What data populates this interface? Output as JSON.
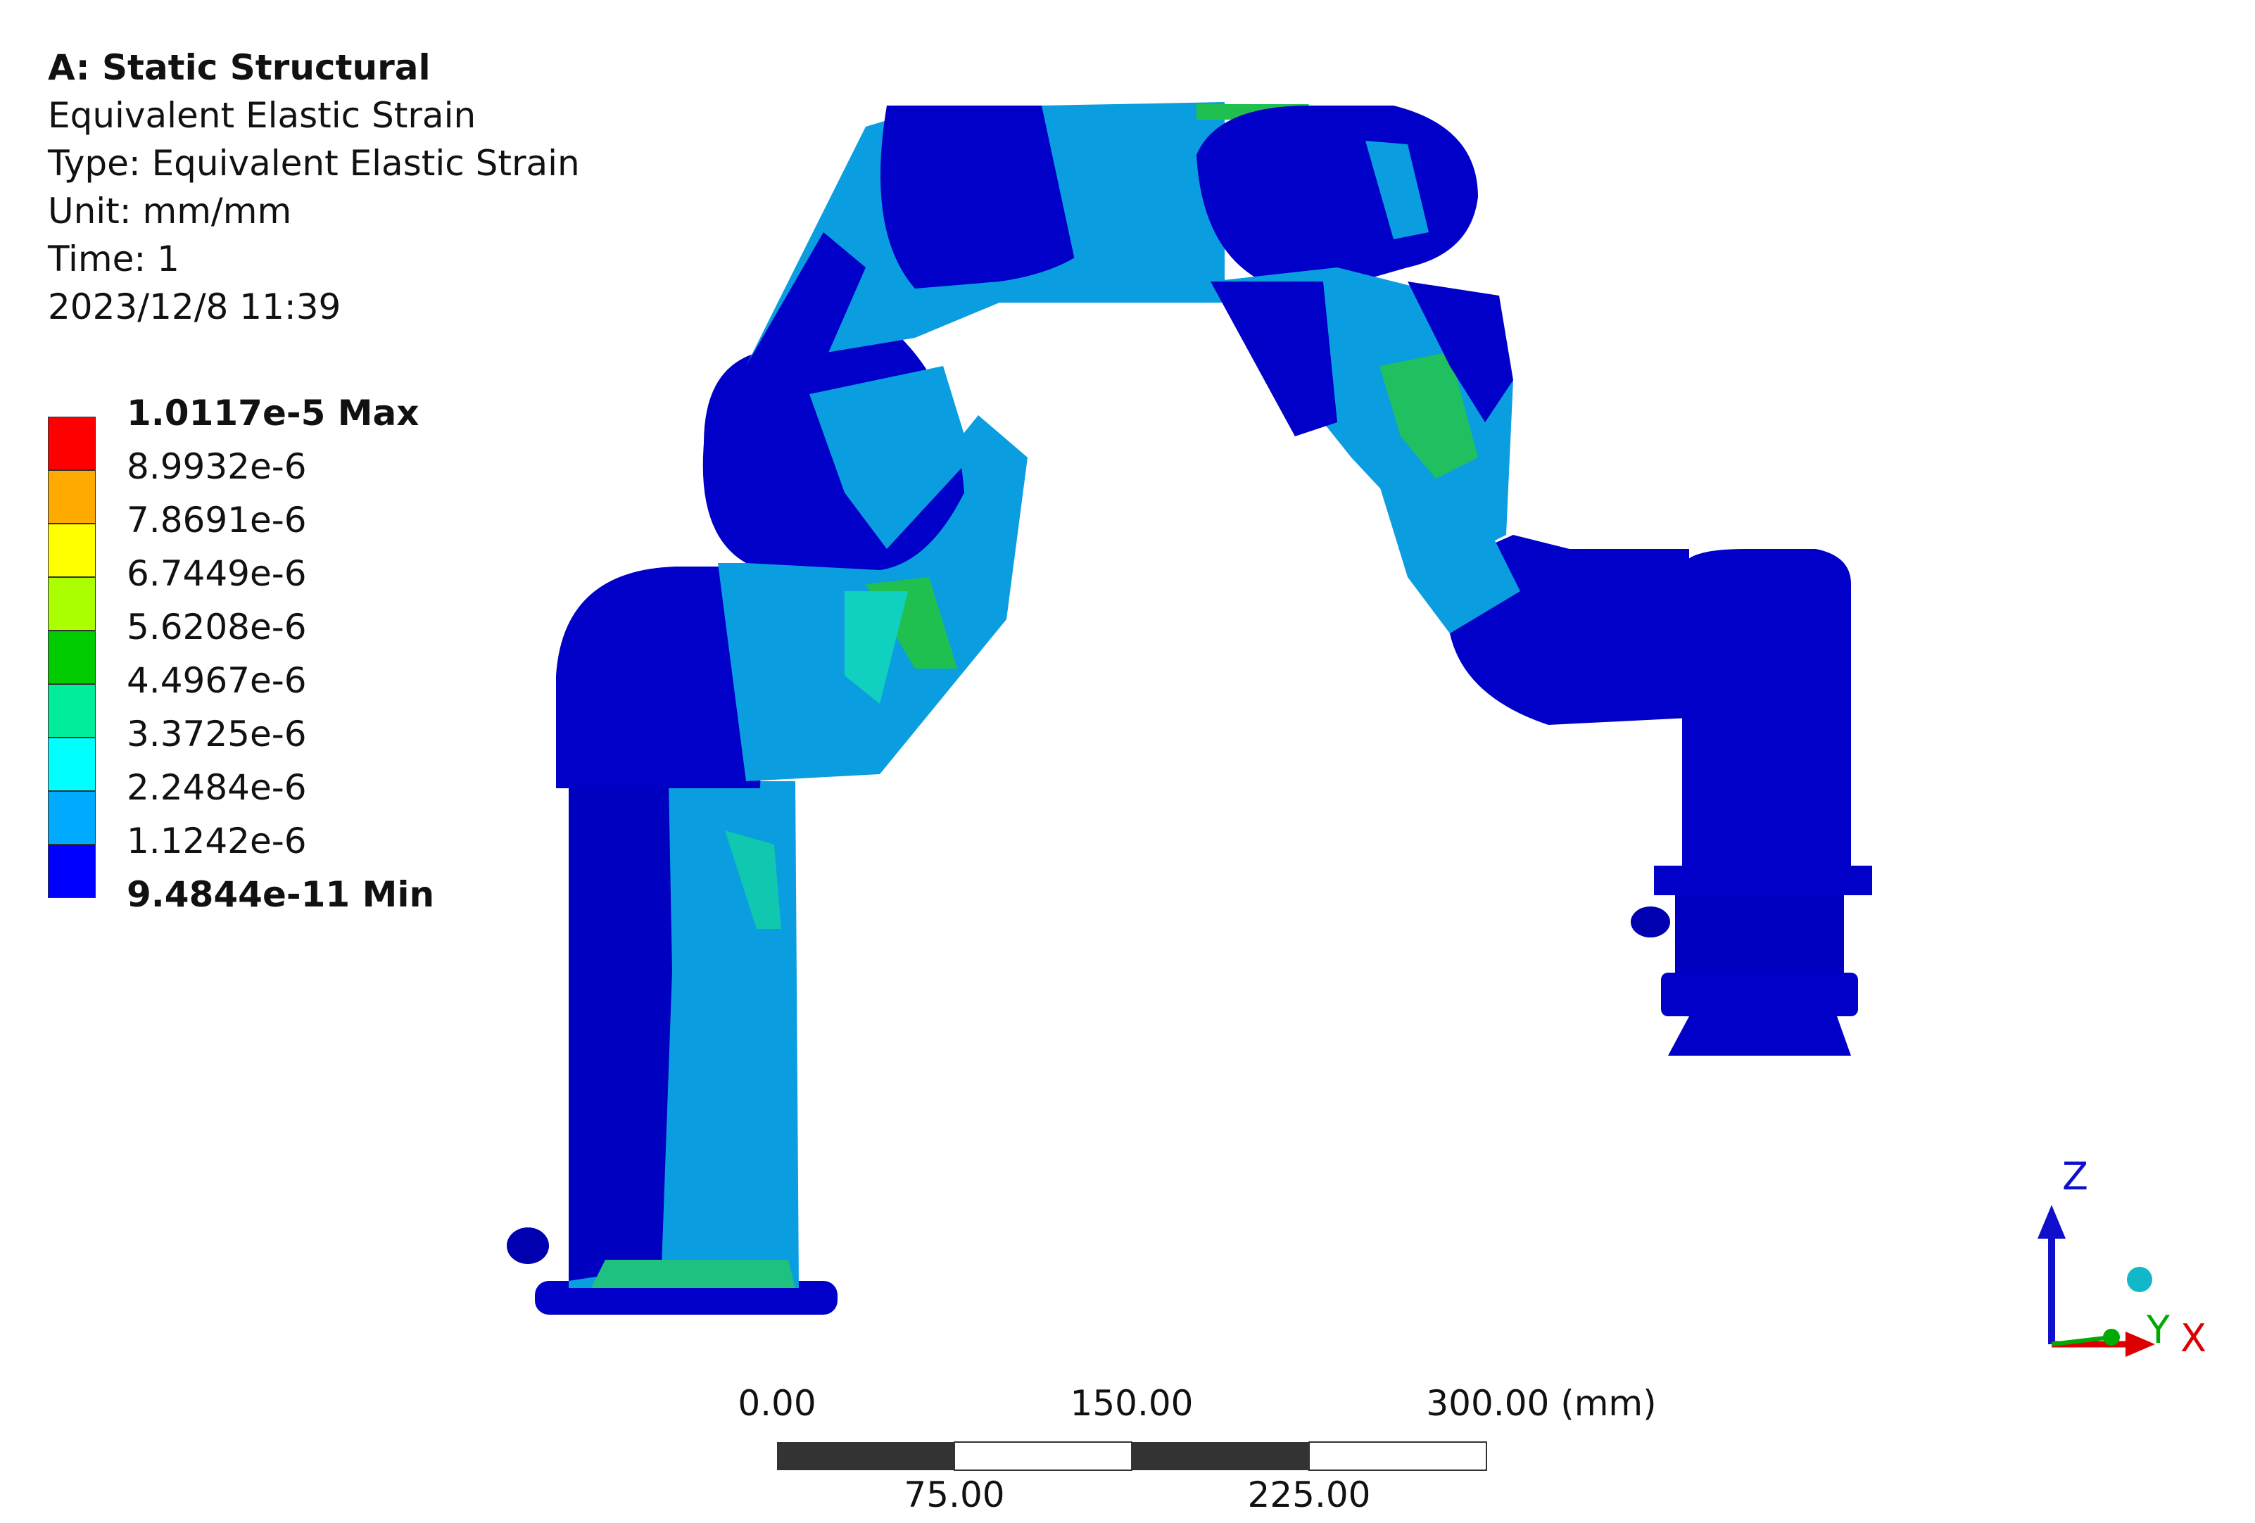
{
  "info": {
    "title": "A: Static Structural",
    "result_name": "Equivalent Elastic Strain",
    "type": "Type: Equivalent Elastic Strain",
    "unit": "Unit: mm/mm",
    "time": "Time: 1",
    "timestamp": "2023/12/8 11:39"
  },
  "legend": {
    "max_label": "1.0117e-5 Max",
    "min_label": "9.4844e-11 Min",
    "levels": [
      {
        "label": "1.0117e-5 Max",
        "color": "#ff0000",
        "bold": true
      },
      {
        "label": "8.9932e-6",
        "color": "#ffaa00",
        "bold": false
      },
      {
        "label": "7.8691e-6",
        "color": "#ffff00",
        "bold": false
      },
      {
        "label": "6.7449e-6",
        "color": "#aaff00",
        "bold": false
      },
      {
        "label": "5.6208e-6",
        "color": "#00cc00",
        "bold": false
      },
      {
        "label": "4.4967e-6",
        "color": "#00ee99",
        "bold": false
      },
      {
        "label": "3.3725e-6",
        "color": "#00ffff",
        "bold": false
      },
      {
        "label": "2.2484e-6",
        "color": "#00aaff",
        "bold": false
      },
      {
        "label": "1.1242e-6",
        "color": "#0000ff",
        "bold": false
      },
      {
        "label": "9.4844e-11 Min",
        "color": "",
        "bold": true
      }
    ]
  },
  "scale_bar": {
    "top_labels": [
      "0.00",
      "150.00",
      "300.00 (mm)"
    ],
    "bottom_labels": [
      "75.00",
      "225.00"
    ]
  },
  "triad": {
    "z_label": "Z",
    "y_label": "Y",
    "x_label": "X",
    "z_color": "#1010cc",
    "y_color": "#00aa00",
    "x_color": "#dd0000"
  },
  "colors": {
    "min_blue": "#0000c8",
    "light_blue": "#0aa0e6",
    "cyan_green": "#10d0b0",
    "green": "#20c040"
  }
}
